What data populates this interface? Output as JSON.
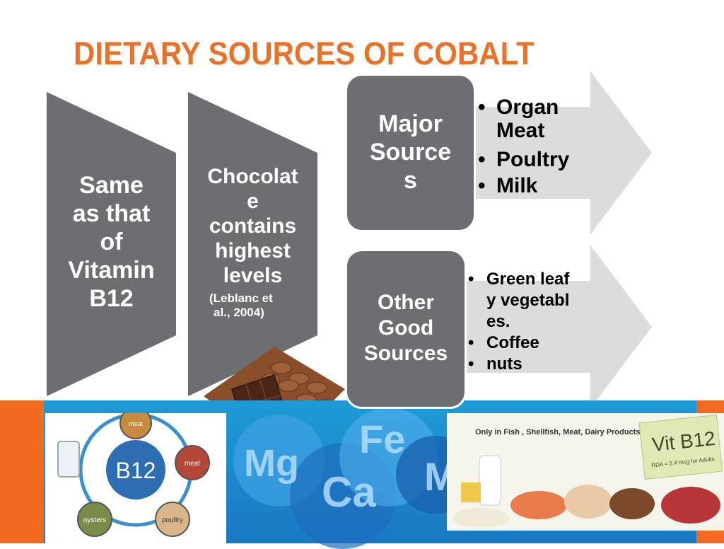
{
  "slide": {
    "title": "DIETARY SOURCES OF COBALT"
  },
  "chevrons": [
    {
      "lines": [
        "Same",
        "as that",
        "of",
        "Vitamin",
        "B12"
      ]
    },
    {
      "lines": [
        "Chocolat",
        "e",
        "contains",
        "highest",
        "levels"
      ],
      "citation_lines": [
        "(Leblanc et",
        "al., 2004)"
      ]
    }
  ],
  "major": {
    "label_lines": [
      "Major",
      "Source",
      "s"
    ],
    "items": [
      "Organ Meat",
      "Poultry",
      "Milk"
    ]
  },
  "other": {
    "label_lines": [
      "Other",
      "Good",
      "Sources"
    ],
    "items": [
      "Green leafy vegetables.",
      "Coffee",
      "nuts"
    ]
  },
  "images": {
    "b12_wheel": {
      "center": "B12",
      "segments": [
        "meat",
        "meat",
        "poultry",
        "oysters"
      ]
    },
    "vit_foods": {
      "caption": "Only in Fish , Shellfish, Meat, Dairy Products",
      "note_title": "Vit B12",
      "note_sub": "RDA = 2.4 mcg for Adults"
    },
    "bubbles": [
      "Fe",
      "Mg",
      "Ca",
      "M"
    ]
  },
  "colors": {
    "title": "#e8722a",
    "chevron": "#6d6e71",
    "arrow": "#dcdcdc",
    "band_blue": "#1e9bd7",
    "band_orange": "#f26a21"
  }
}
